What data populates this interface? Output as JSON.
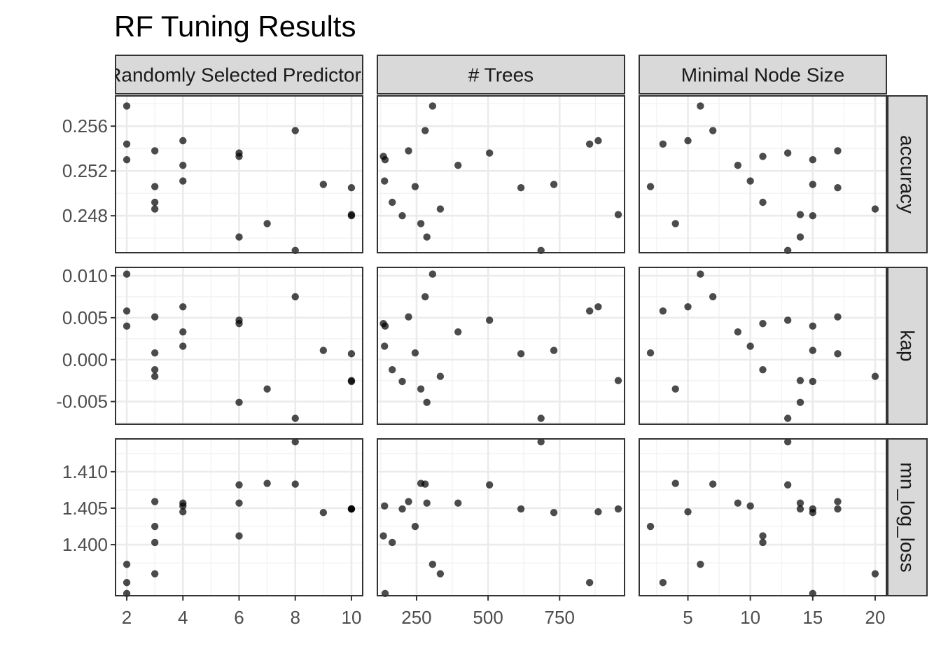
{
  "chart_data": {
    "type": "scatter",
    "title": "RF Tuning Results",
    "layout": "facet_grid",
    "grid": true,
    "col_facets": [
      {
        "label": "Randomly Selected Predictors",
        "xlim": [
          1.6,
          10.4
        ],
        "xticks": [
          2,
          4,
          6,
          8,
          10
        ],
        "xtick_labels": [
          "2",
          "4",
          "6",
          "8",
          "10"
        ],
        "x_values": [
          2,
          2,
          2,
          3,
          3,
          3,
          3,
          4,
          4,
          4,
          6,
          6,
          6,
          7,
          8,
          8,
          9,
          10,
          10,
          10
        ]
      },
      {
        "label": "# Trees",
        "xlim": [
          113,
          977
        ],
        "xticks": [
          250,
          500,
          750
        ],
        "xtick_labels": [
          "250",
          "500",
          "750"
        ],
        "x_values": [
          306,
          855,
          140,
          222,
          245,
          165,
          333,
          885,
          395,
          138,
          505,
          134,
          286,
          265,
          280,
          685,
          730,
          615,
          955,
          200
        ]
      },
      {
        "label": "Minimal Node Size",
        "xlim": [
          1.1,
          20.9
        ],
        "xticks": [
          5,
          10,
          15,
          20
        ],
        "xtick_labels": [
          "5",
          "10",
          "15",
          "20"
        ],
        "x_values": [
          6,
          3,
          15,
          17,
          2,
          11,
          20,
          5,
          9,
          10,
          13,
          11,
          14,
          4,
          7,
          13,
          15,
          17,
          14,
          15
        ]
      }
    ],
    "row_facets": [
      {
        "label": "accuracy",
        "ylim": [
          0.2447,
          0.2587
        ],
        "yticks": [
          0.248,
          0.252,
          0.256
        ],
        "ytick_labels": [
          "0.248",
          "0.252",
          "0.256"
        ],
        "y_values": [
          0.2578,
          0.2544,
          0.253,
          0.2538,
          0.2506,
          0.2492,
          0.2486,
          0.2547,
          0.2525,
          0.2511,
          0.2536,
          0.2533,
          0.2461,
          0.2473,
          0.2556,
          0.2449,
          0.2508,
          0.2505,
          0.2481,
          0.248
        ]
      },
      {
        "label": "kap",
        "ylim": [
          -0.0077,
          0.011
        ],
        "yticks": [
          -0.005,
          0.0,
          0.005,
          0.01
        ],
        "ytick_labels": [
          "-0.005",
          "0.000",
          "0.005",
          "0.010"
        ],
        "y_values": [
          0.0102,
          0.0058,
          0.004,
          0.0051,
          0.0008,
          -0.0012,
          -0.002,
          0.0063,
          0.0033,
          0.0016,
          0.0047,
          0.0043,
          -0.0051,
          -0.0035,
          0.0075,
          -0.007,
          0.0011,
          0.0007,
          -0.0025,
          -0.0026
        ]
      },
      {
        "label": "mn_log_loss",
        "ylim": [
          1.393,
          1.4145
        ],
        "yticks": [
          1.4,
          1.405,
          1.41
        ],
        "ytick_labels": [
          "1.400",
          "1.405",
          "1.410"
        ],
        "y_values": [
          1.3973,
          1.3948,
          1.3933,
          1.4059,
          1.4025,
          1.4003,
          1.396,
          1.4045,
          1.4057,
          1.4053,
          1.4082,
          1.4012,
          1.4057,
          1.4084,
          1.4083,
          1.4141,
          1.4044,
          1.4049,
          1.4049,
          1.4049
        ]
      }
    ]
  }
}
